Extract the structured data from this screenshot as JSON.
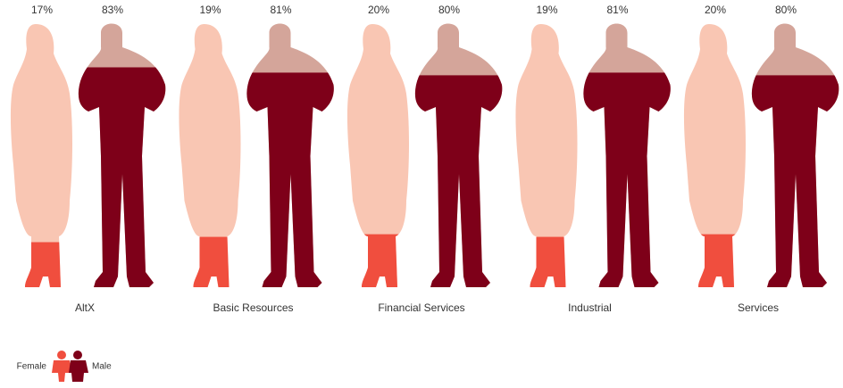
{
  "chart_data": {
    "type": "pictogram",
    "categories": [
      "AltX",
      "Basic Resources",
      "Financial Services",
      "Industrial",
      "Services"
    ],
    "series": [
      {
        "name": "Female",
        "color": "#f04e3e",
        "empty_color": "#f9c6b3",
        "values": [
          17,
          19,
          20,
          19,
          20
        ],
        "value_labels": [
          "17%",
          "19%",
          "20%",
          "19%",
          "20%"
        ]
      },
      {
        "name": "Male",
        "color": "#7e0019",
        "empty_color": "#d4a59a",
        "values": [
          83,
          81,
          80,
          81,
          80
        ],
        "value_labels": [
          "83%",
          "81%",
          "80%",
          "81%",
          "80%"
        ]
      }
    ],
    "ylim": [
      0,
      100
    ]
  }
}
